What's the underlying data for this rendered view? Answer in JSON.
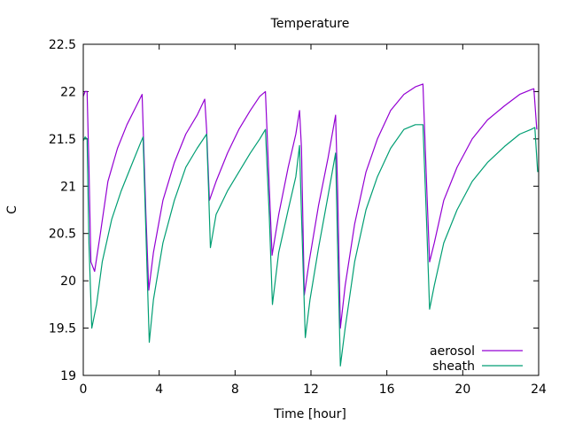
{
  "chart_data": {
    "type": "line",
    "title": "Temperature",
    "xlabel": "Time [hour]",
    "ylabel": "C",
    "xlim": [
      0,
      24
    ],
    "ylim": [
      19,
      22.5
    ],
    "grid": false,
    "legend_position": "bottom-right",
    "x_ticks": [
      0,
      4,
      8,
      12,
      16,
      20,
      24
    ],
    "x_tick_labels": [
      "0",
      "4",
      "8",
      "12",
      "16",
      "20",
      "24"
    ],
    "y_ticks": [
      19,
      19.5,
      20,
      20.5,
      21,
      21.5,
      22,
      22.5
    ],
    "y_tick_labels": [
      "19",
      "19.5",
      "20",
      "20.5",
      "21",
      "21.5",
      "22",
      "22.5"
    ],
    "series": [
      {
        "name": "aerosol",
        "color": "#9400d3",
        "points": [
          [
            0.0,
            21.95
          ],
          [
            0.1,
            22.0
          ],
          [
            0.2,
            22.0
          ],
          [
            0.3,
            21.2
          ],
          [
            0.4,
            20.2
          ],
          [
            0.6,
            20.1
          ],
          [
            0.9,
            20.5
          ],
          [
            1.3,
            21.05
          ],
          [
            1.8,
            21.4
          ],
          [
            2.3,
            21.65
          ],
          [
            2.8,
            21.85
          ],
          [
            3.1,
            21.97
          ],
          [
            3.3,
            20.7
          ],
          [
            3.45,
            19.9
          ],
          [
            3.7,
            20.3
          ],
          [
            4.2,
            20.85
          ],
          [
            4.8,
            21.25
          ],
          [
            5.4,
            21.55
          ],
          [
            6.0,
            21.75
          ],
          [
            6.4,
            21.92
          ],
          [
            6.5,
            21.6
          ],
          [
            6.65,
            20.85
          ],
          [
            7.0,
            21.05
          ],
          [
            7.6,
            21.35
          ],
          [
            8.2,
            21.6
          ],
          [
            8.8,
            21.8
          ],
          [
            9.3,
            21.95
          ],
          [
            9.6,
            22.0
          ],
          [
            9.8,
            21.0
          ],
          [
            9.95,
            20.27
          ],
          [
            10.3,
            20.7
          ],
          [
            10.8,
            21.2
          ],
          [
            11.2,
            21.55
          ],
          [
            11.4,
            21.8
          ],
          [
            11.5,
            21.4
          ],
          [
            11.65,
            19.85
          ],
          [
            11.9,
            20.2
          ],
          [
            12.4,
            20.8
          ],
          [
            12.9,
            21.3
          ],
          [
            13.3,
            21.75
          ],
          [
            13.4,
            21.0
          ],
          [
            13.55,
            19.5
          ],
          [
            13.8,
            19.95
          ],
          [
            14.3,
            20.6
          ],
          [
            14.9,
            21.15
          ],
          [
            15.5,
            21.5
          ],
          [
            16.2,
            21.8
          ],
          [
            16.9,
            21.97
          ],
          [
            17.5,
            22.05
          ],
          [
            17.9,
            22.08
          ],
          [
            18.1,
            21.0
          ],
          [
            18.25,
            20.2
          ],
          [
            18.5,
            20.4
          ],
          [
            19.0,
            20.85
          ],
          [
            19.7,
            21.2
          ],
          [
            20.5,
            21.5
          ],
          [
            21.3,
            21.7
          ],
          [
            22.2,
            21.85
          ],
          [
            23.0,
            21.97
          ],
          [
            23.6,
            22.02
          ],
          [
            23.75,
            22.03
          ],
          [
            23.9,
            21.6
          ]
        ]
      },
      {
        "name": "sheath",
        "color": "#009e73",
        "points": [
          [
            0.0,
            21.48
          ],
          [
            0.1,
            21.52
          ],
          [
            0.2,
            21.5
          ],
          [
            0.3,
            20.4
          ],
          [
            0.45,
            19.5
          ],
          [
            0.7,
            19.75
          ],
          [
            1.0,
            20.2
          ],
          [
            1.5,
            20.65
          ],
          [
            2.0,
            20.95
          ],
          [
            2.5,
            21.2
          ],
          [
            3.0,
            21.45
          ],
          [
            3.15,
            21.52
          ],
          [
            3.35,
            20.2
          ],
          [
            3.48,
            19.35
          ],
          [
            3.7,
            19.8
          ],
          [
            4.2,
            20.4
          ],
          [
            4.8,
            20.85
          ],
          [
            5.4,
            21.2
          ],
          [
            6.0,
            21.4
          ],
          [
            6.5,
            21.55
          ],
          [
            6.6,
            21.0
          ],
          [
            6.7,
            20.35
          ],
          [
            7.0,
            20.7
          ],
          [
            7.6,
            20.95
          ],
          [
            8.2,
            21.15
          ],
          [
            8.8,
            21.35
          ],
          [
            9.3,
            21.5
          ],
          [
            9.6,
            21.6
          ],
          [
            9.8,
            20.7
          ],
          [
            9.97,
            19.75
          ],
          [
            10.3,
            20.3
          ],
          [
            10.8,
            20.75
          ],
          [
            11.2,
            21.1
          ],
          [
            11.4,
            21.43
          ],
          [
            11.5,
            20.7
          ],
          [
            11.7,
            19.4
          ],
          [
            11.95,
            19.8
          ],
          [
            12.4,
            20.35
          ],
          [
            12.9,
            20.9
          ],
          [
            13.3,
            21.35
          ],
          [
            13.4,
            20.4
          ],
          [
            13.55,
            19.1
          ],
          [
            13.8,
            19.5
          ],
          [
            14.3,
            20.2
          ],
          [
            14.9,
            20.75
          ],
          [
            15.5,
            21.1
          ],
          [
            16.2,
            21.4
          ],
          [
            16.9,
            21.6
          ],
          [
            17.5,
            21.65
          ],
          [
            17.9,
            21.65
          ],
          [
            18.1,
            20.6
          ],
          [
            18.25,
            19.7
          ],
          [
            18.5,
            19.95
          ],
          [
            19.0,
            20.4
          ],
          [
            19.7,
            20.75
          ],
          [
            20.5,
            21.05
          ],
          [
            21.3,
            21.25
          ],
          [
            22.2,
            21.42
          ],
          [
            23.0,
            21.55
          ],
          [
            23.6,
            21.6
          ],
          [
            23.8,
            21.62
          ],
          [
            23.95,
            21.15
          ]
        ]
      }
    ]
  }
}
